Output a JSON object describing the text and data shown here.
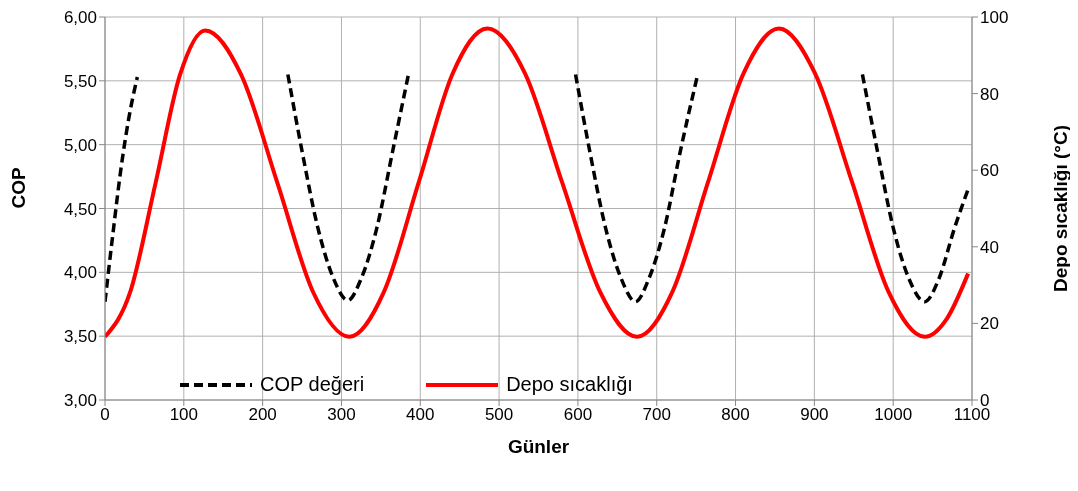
{
  "chart_data": {
    "type": "line",
    "xlabel": "Günler",
    "ylabel": "COP",
    "y2label": "Depo sıcaklığı (°C)",
    "xlim": [
      0,
      1100
    ],
    "xticks": [
      0,
      100,
      200,
      300,
      400,
      500,
      600,
      700,
      800,
      900,
      1000,
      1100
    ],
    "ylim": [
      3,
      6
    ],
    "yticks": [
      {
        "value": 3,
        "label": "3,00"
      },
      {
        "value": 3.5,
        "label": "3,50"
      },
      {
        "value": 4,
        "label": "4,00"
      },
      {
        "value": 4.5,
        "label": "4,50"
      },
      {
        "value": 5,
        "label": "5,00"
      },
      {
        "value": 5.5,
        "label": "5,50"
      },
      {
        "value": 6,
        "label": "6,00"
      }
    ],
    "y2lim": [
      0,
      100
    ],
    "y2ticks": [
      0,
      20,
      40,
      60,
      80,
      100
    ],
    "grid": true,
    "legend": "bottom",
    "marker": "none",
    "series": [
      {
        "name": "COP değeri",
        "color": "#000000",
        "line_style": "dashed",
        "x": [
          0,
          10,
          20,
          30,
          41,
          130,
          232,
          250,
          270,
          290,
          308,
          325,
          345,
          365,
          385,
          490,
          597,
          615,
          635,
          655,
          673,
          690,
          710,
          730,
          752,
          850,
          961,
          980,
          1000,
          1020,
          1040,
          1058,
          1078,
          1095
        ],
        "values": [
          3.77,
          4.3,
          4.8,
          5.2,
          5.53,
          null,
          5.55,
          4.95,
          4.35,
          3.95,
          3.78,
          3.95,
          4.35,
          4.95,
          5.55,
          null,
          5.55,
          4.95,
          4.35,
          3.95,
          3.77,
          3.95,
          4.35,
          4.95,
          5.55,
          null,
          5.55,
          4.95,
          4.35,
          3.95,
          3.77,
          3.95,
          4.35,
          4.65
        ]
      },
      {
        "name": "Depo sıcaklığı",
        "color": "#ff0000",
        "line_style": "solid",
        "axis": "y2",
        "x": [
          0,
          32,
          64,
          95,
          127,
          173,
          219,
          264,
          310,
          354,
          398,
          441,
          485,
          533,
          580,
          628,
          675,
          720,
          765,
          810,
          855,
          901,
          948,
          994,
          1040,
          1068,
          1095
        ],
        "values": [
          16.5,
          28.2,
          56.5,
          84.8,
          96.5,
          84.8,
          56.5,
          28.2,
          16.5,
          28.3,
          56.8,
          85.2,
          97,
          85.2,
          56.8,
          28.3,
          16.5,
          28.3,
          56.8,
          85.2,
          97,
          85.2,
          56.8,
          28.3,
          16.5,
          21.2,
          33
        ]
      }
    ]
  }
}
